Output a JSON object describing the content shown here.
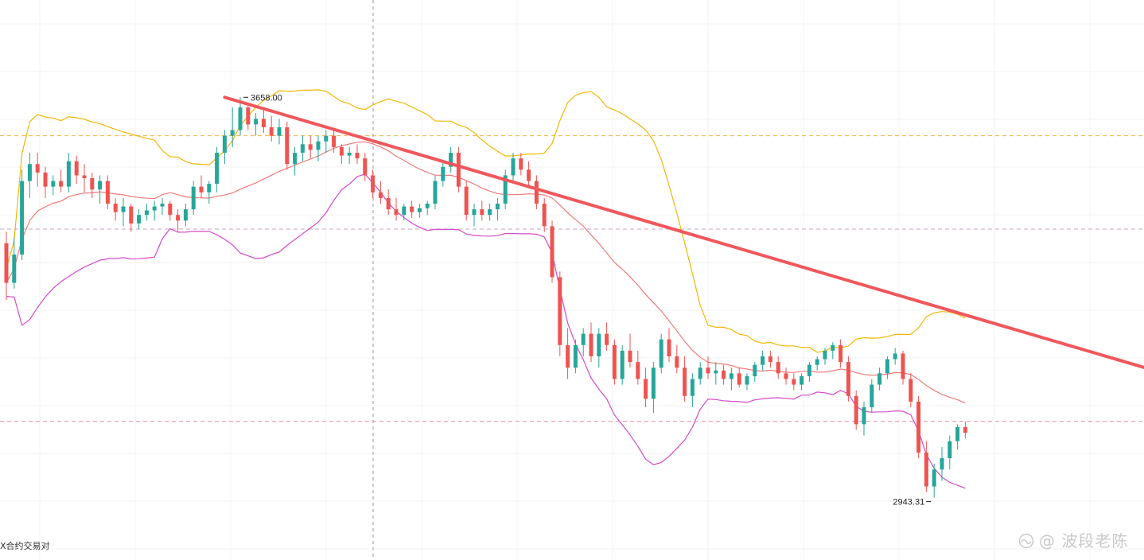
{
  "footer_text": "X合约交易对",
  "watermark": {
    "text": "@ 波段老陈",
    "icon": "wave-logo-icon"
  },
  "chart_data": {
    "type": "candlestick",
    "title": "",
    "xlabel": "",
    "ylabel": "",
    "ylim": [
      2840,
      3830
    ],
    "grid": true,
    "annotations": {
      "high_label": "3658.00",
      "low_label": "2943.31",
      "high_value": 3658.0,
      "low_value": 2943.31
    },
    "horizontal_levels": [
      {
        "value": 3590,
        "color": "#f5b342",
        "style": "dashed"
      },
      {
        "value": 3425,
        "color": "#c9a3c4",
        "style": "dashed"
      },
      {
        "value": 3085,
        "color": "#e88aa2",
        "style": "dashed"
      }
    ],
    "trend_arrow": {
      "from": [
        28,
        3658
      ],
      "to": [
        167,
        3095
      ],
      "color": "#f0575c"
    },
    "colors": {
      "up": "#26a69a",
      "down": "#ef5350",
      "bb_upper": "#f2b705",
      "bb_middle": "#ef7a7a",
      "bb_lower": "#d44ac8"
    },
    "ohlc": [
      [
        3400,
        3420,
        3300,
        3330
      ],
      [
        3330,
        3410,
        3320,
        3380
      ],
      [
        3380,
        3530,
        3370,
        3510
      ],
      [
        3510,
        3560,
        3480,
        3540
      ],
      [
        3540,
        3560,
        3500,
        3525
      ],
      [
        3525,
        3535,
        3480,
        3500
      ],
      [
        3500,
        3520,
        3485,
        3510
      ],
      [
        3510,
        3530,
        3490,
        3500
      ],
      [
        3500,
        3560,
        3490,
        3545
      ],
      [
        3545,
        3555,
        3505,
        3520
      ],
      [
        3520,
        3540,
        3490,
        3515
      ],
      [
        3515,
        3525,
        3480,
        3495
      ],
      [
        3495,
        3520,
        3470,
        3510
      ],
      [
        3510,
        3520,
        3460,
        3470
      ],
      [
        3470,
        3480,
        3440,
        3455
      ],
      [
        3455,
        3480,
        3430,
        3465
      ],
      [
        3465,
        3470,
        3420,
        3435
      ],
      [
        3435,
        3460,
        3425,
        3450
      ],
      [
        3450,
        3470,
        3440,
        3458
      ],
      [
        3458,
        3475,
        3440,
        3465
      ],
      [
        3465,
        3480,
        3450,
        3470
      ],
      [
        3470,
        3475,
        3440,
        3450
      ],
      [
        3450,
        3460,
        3420,
        3440
      ],
      [
        3440,
        3470,
        3430,
        3460
      ],
      [
        3460,
        3510,
        3450,
        3500
      ],
      [
        3500,
        3520,
        3480,
        3490
      ],
      [
        3490,
        3510,
        3470,
        3505
      ],
      [
        3505,
        3570,
        3490,
        3560
      ],
      [
        3560,
        3600,
        3540,
        3590
      ],
      [
        3590,
        3640,
        3570,
        3600
      ],
      [
        3600,
        3658,
        3590,
        3640
      ],
      [
        3640,
        3645,
        3600,
        3610
      ],
      [
        3610,
        3630,
        3590,
        3620
      ],
      [
        3620,
        3635,
        3595,
        3605
      ],
      [
        3605,
        3625,
        3580,
        3590
      ],
      [
        3590,
        3620,
        3575,
        3605
      ],
      [
        3605,
        3615,
        3530,
        3540
      ],
      [
        3540,
        3570,
        3520,
        3560
      ],
      [
        3560,
        3590,
        3545,
        3575
      ],
      [
        3575,
        3590,
        3550,
        3565
      ],
      [
        3565,
        3590,
        3545,
        3580
      ],
      [
        3580,
        3600,
        3560,
        3590
      ],
      [
        3590,
        3600,
        3560,
        3570
      ],
      [
        3570,
        3575,
        3540,
        3555
      ],
      [
        3555,
        3570,
        3540,
        3560
      ],
      [
        3560,
        3575,
        3540,
        3550
      ],
      [
        3550,
        3560,
        3510,
        3520
      ],
      [
        3520,
        3530,
        3480,
        3490
      ],
      [
        3490,
        3510,
        3470,
        3480
      ],
      [
        3480,
        3495,
        3450,
        3460
      ],
      [
        3460,
        3480,
        3440,
        3450
      ],
      [
        3450,
        3470,
        3440,
        3465
      ],
      [
        3465,
        3475,
        3445,
        3455
      ],
      [
        3455,
        3470,
        3445,
        3462
      ],
      [
        3462,
        3475,
        3450,
        3470
      ],
      [
        3470,
        3520,
        3460,
        3510
      ],
      [
        3510,
        3545,
        3500,
        3535
      ],
      [
        3535,
        3570,
        3525,
        3560
      ],
      [
        3560,
        3570,
        3490,
        3500
      ],
      [
        3500,
        3510,
        3440,
        3450
      ],
      [
        3450,
        3470,
        3430,
        3460
      ],
      [
        3460,
        3475,
        3440,
        3450
      ],
      [
        3450,
        3470,
        3440,
        3460
      ],
      [
        3460,
        3480,
        3440,
        3470
      ],
      [
        3470,
        3530,
        3460,
        3520
      ],
      [
        3520,
        3560,
        3510,
        3550
      ],
      [
        3550,
        3560,
        3520,
        3530
      ],
      [
        3530,
        3545,
        3500,
        3510
      ],
      [
        3510,
        3520,
        3460,
        3470
      ],
      [
        3470,
        3480,
        3420,
        3430
      ],
      [
        3430,
        3440,
        3330,
        3340
      ],
      [
        3340,
        3350,
        3200,
        3220
      ],
      [
        3220,
        3250,
        3160,
        3180
      ],
      [
        3180,
        3230,
        3170,
        3220
      ],
      [
        3220,
        3250,
        3200,
        3240
      ],
      [
        3240,
        3260,
        3190,
        3200
      ],
      [
        3200,
        3250,
        3180,
        3240
      ],
      [
        3240,
        3260,
        3210,
        3220
      ],
      [
        3220,
        3230,
        3150,
        3160
      ],
      [
        3160,
        3220,
        3150,
        3210
      ],
      [
        3210,
        3240,
        3180,
        3190
      ],
      [
        3190,
        3210,
        3150,
        3160
      ],
      [
        3160,
        3180,
        3110,
        3125
      ],
      [
        3125,
        3190,
        3100,
        3180
      ],
      [
        3180,
        3240,
        3170,
        3230
      ],
      [
        3230,
        3250,
        3190,
        3200
      ],
      [
        3200,
        3220,
        3170,
        3180
      ],
      [
        3180,
        3200,
        3120,
        3130
      ],
      [
        3130,
        3170,
        3110,
        3160
      ],
      [
        3160,
        3190,
        3150,
        3180
      ],
      [
        3180,
        3200,
        3160,
        3170
      ],
      [
        3170,
        3190,
        3150,
        3175
      ],
      [
        3175,
        3185,
        3150,
        3160
      ],
      [
        3160,
        3180,
        3140,
        3170
      ],
      [
        3170,
        3180,
        3145,
        3150
      ],
      [
        3150,
        3170,
        3140,
        3165
      ],
      [
        3165,
        3190,
        3155,
        3185
      ],
      [
        3185,
        3210,
        3175,
        3200
      ],
      [
        3200,
        3210,
        3180,
        3190
      ],
      [
        3190,
        3200,
        3160,
        3170
      ],
      [
        3170,
        3180,
        3150,
        3160
      ],
      [
        3160,
        3170,
        3140,
        3150
      ],
      [
        3150,
        3170,
        3140,
        3165
      ],
      [
        3165,
        3190,
        3155,
        3185
      ],
      [
        3185,
        3200,
        3175,
        3195
      ],
      [
        3195,
        3215,
        3185,
        3210
      ],
      [
        3210,
        3225,
        3195,
        3220
      ],
      [
        3220,
        3230,
        3180,
        3190
      ],
      [
        3190,
        3200,
        3120,
        3130
      ],
      [
        3130,
        3140,
        3070,
        3080
      ],
      [
        3080,
        3120,
        3060,
        3110
      ],
      [
        3110,
        3160,
        3100,
        3150
      ],
      [
        3150,
        3180,
        3140,
        3170
      ],
      [
        3170,
        3200,
        3160,
        3195
      ],
      [
        3195,
        3215,
        3185,
        3205
      ],
      [
        3205,
        3210,
        3150,
        3160
      ],
      [
        3160,
        3170,
        3110,
        3120
      ],
      [
        3120,
        3130,
        3020,
        3030
      ],
      [
        3030,
        3050,
        2960,
        2970
      ],
      [
        2970,
        3010,
        2950,
        3000
      ],
      [
        3000,
        3040,
        2980,
        3020
      ],
      [
        3020,
        3060,
        3000,
        3050
      ],
      [
        3050,
        3080,
        3035,
        3075
      ],
      [
        3075,
        3085,
        3055,
        3065
      ]
    ]
  }
}
